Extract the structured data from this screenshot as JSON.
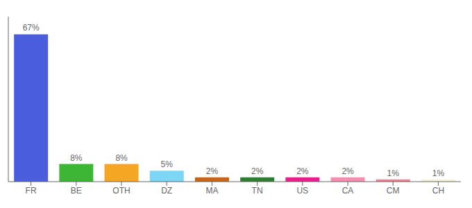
{
  "chart_data": {
    "type": "bar",
    "categories": [
      "FR",
      "BE",
      "OTH",
      "DZ",
      "MA",
      "TN",
      "US",
      "CA",
      "CM",
      "CH"
    ],
    "values": [
      67,
      8,
      8,
      5,
      2,
      2,
      2,
      2,
      1,
      1
    ],
    "value_labels": [
      "67%",
      "8%",
      "8%",
      "5%",
      "2%",
      "2%",
      "2%",
      "2%",
      "1%",
      "1%"
    ],
    "colors": [
      "#4a5edd",
      "#3db535",
      "#f5a623",
      "#7dd6f5",
      "#c8651a",
      "#2e7d32",
      "#e91e8c",
      "#f48fb1",
      "#f08090",
      "#f5f0d8"
    ],
    "ylim": [
      0,
      75
    ],
    "grid": false,
    "data_labels": true,
    "tick_labels": "x"
  }
}
